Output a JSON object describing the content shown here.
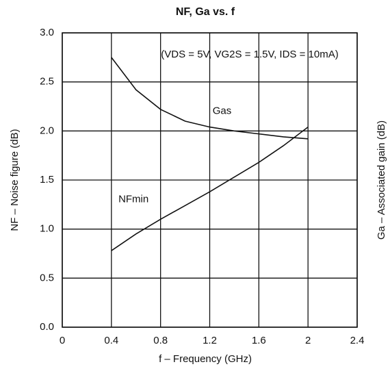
{
  "chart_data": {
    "type": "line",
    "title": "NF, Ga vs. f",
    "x_label": "f – Frequency   (GHz)",
    "y_label": "NF – Noise figure   (dB)",
    "y2_label": "Ga – Associated gain   (dB)",
    "annotation": "(VDS = 5V, VG2S = 1.5V, IDS = 10mA)",
    "xlim": [
      0,
      2.4
    ],
    "xticks": [
      0,
      0.4,
      0.8,
      1.2,
      1.6,
      2,
      2.4
    ],
    "ylim": [
      0,
      3
    ],
    "yticks": [
      {
        "value": 0,
        "label": "0.0"
      },
      0.5,
      {
        "value": 1,
        "label": "1.0"
      },
      1.5,
      {
        "value": 2,
        "label": "2.0"
      },
      2.5,
      {
        "value": 3,
        "label": "3.0"
      }
    ],
    "grid": true,
    "series": [
      {
        "name": "Gas",
        "color": "#111111",
        "x": [
          0.4,
          0.6,
          0.8,
          1.0,
          1.2,
          1.4,
          1.6,
          1.8,
          2.0
        ],
        "values": [
          2.75,
          2.42,
          2.22,
          2.1,
          2.04,
          2.0,
          1.97,
          1.94,
          1.92
        ]
      },
      {
        "name": "NFmin",
        "color": "#111111",
        "x": [
          0.4,
          0.6,
          0.8,
          1.0,
          1.2,
          1.4,
          1.6,
          1.8,
          2.0
        ],
        "values": [
          0.78,
          0.95,
          1.1,
          1.24,
          1.38,
          1.53,
          1.68,
          1.85,
          2.04
        ]
      }
    ]
  }
}
